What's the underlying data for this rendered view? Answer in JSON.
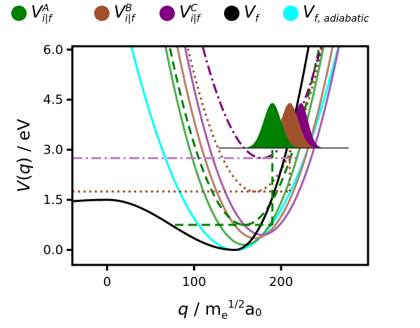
{
  "chart_data": {
    "type": "line",
    "xlabel": "q / m_e^{1/2} a_0",
    "ylabel": "V(q) / eV",
    "xlim": [
      -40,
      300
    ],
    "ylim": [
      -0.45,
      6.1
    ],
    "xticks": [
      "0",
      "100",
      "200"
    ],
    "yticks": [
      "0.0",
      "1.5",
      "3.0",
      "4.5",
      "6.0"
    ],
    "grid": false,
    "legend_position": "top",
    "legend": [
      {
        "key": "A",
        "label": "V_{i|f}^A",
        "color": "#008000"
      },
      {
        "key": "B",
        "label": "V_{i|f}^B",
        "color": "#a0522d"
      },
      {
        "key": "C",
        "label": "V_{i|f}^C",
        "color": "#800080"
      },
      {
        "key": "f",
        "label": "V_f",
        "color": "#000000"
      },
      {
        "key": "ad",
        "label": "V_{f, adiabatic}",
        "color": "#00ffff"
      }
    ],
    "series": [
      {
        "name": "V_f",
        "color": "#000000",
        "kind": "double-well",
        "barrier_q": 0,
        "barrier_V": 1.5,
        "min_q": 147,
        "min_V": 0.0
      },
      {
        "name": "V_{f, adiabatic}",
        "color": "#00ffff",
        "kind": "parabola",
        "min_q": 147,
        "min_V": 0.0,
        "curvature": 0.00043
      },
      {
        "name": "V_{i|f}^A",
        "color": "#008000",
        "kind": "parabola",
        "min_q": 158,
        "min_V": 0.15,
        "curvature": 0.00072
      },
      {
        "name": "V_{i|f}^B",
        "color": "#a0522d",
        "kind": "parabola",
        "min_q": 170,
        "min_V": 0.35,
        "curvature": 0.00072
      },
      {
        "name": "V_{i|f}^C",
        "color": "#800080",
        "kind": "parabola",
        "min_q": 178,
        "min_V": 0.45,
        "curvature": 0.00072
      },
      {
        "name": "V_{i|f}^A (shifted)",
        "color": "#008000",
        "kind": "parabola-dashed",
        "min_q": 158,
        "min_V": 0.75,
        "curvature": 0.00072
      },
      {
        "name": "V_{i|f}^B (shifted)",
        "color": "#a0522d",
        "kind": "parabola-dotted",
        "min_q": 170,
        "min_V": 1.75,
        "curvature": 0.00072
      },
      {
        "name": "V_{i|f}^C (shifted)",
        "color": "#800080",
        "kind": "parabola-dashdot",
        "min_q": 178,
        "min_V": 2.75,
        "curvature": 0.00072
      }
    ],
    "horizontal_levels": [
      {
        "key": "A",
        "V": 0.75,
        "q_from": 78,
        "q_to": 190,
        "color": "#008000",
        "style": "dashed"
      },
      {
        "key": "B",
        "V": 1.75,
        "q_from": -40,
        "q_to": 210,
        "color": "#a0522d",
        "style": "dotted"
      },
      {
        "key": "C",
        "V": 2.75,
        "q_from": -40,
        "q_to": 222,
        "color": "#c080c0",
        "style": "dashdot"
      }
    ],
    "vertical_markers": [
      {
        "key": "A",
        "q": 190,
        "V_from": 0.75,
        "V_to": 3.05,
        "color": "#008000",
        "style": "dashed"
      },
      {
        "key": "B",
        "q": 210,
        "V_from": 1.75,
        "V_to": 3.05,
        "color": "#a0522d",
        "style": "dotted"
      }
    ],
    "gaussians": [
      {
        "key": "A",
        "center_q": 190,
        "sigma_q": 10,
        "height_V": 1.35,
        "base_V": 3.05,
        "color": "#008000"
      },
      {
        "key": "B",
        "center_q": 210,
        "sigma_q": 10,
        "height_V": 1.35,
        "base_V": 3.05,
        "color": "#a0522d"
      },
      {
        "key": "C",
        "center_q": 223,
        "sigma_q": 8,
        "height_V": 1.35,
        "base_V": 3.05,
        "color": "#800080"
      }
    ]
  }
}
